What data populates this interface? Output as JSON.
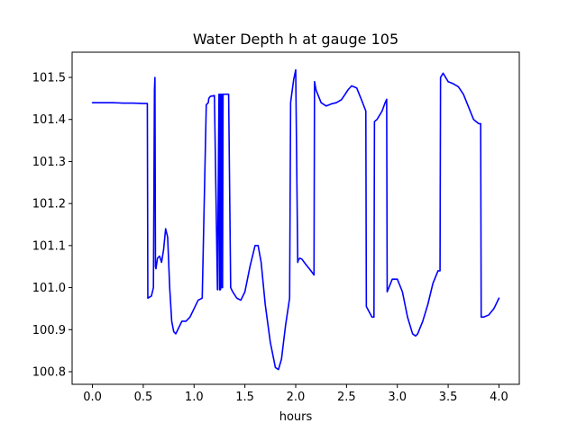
{
  "chart_data": {
    "type": "line",
    "title": "Water Depth h at gauge 105",
    "xlabel": "hours",
    "ylabel": "",
    "xlim": [
      -0.2,
      4.2
    ],
    "ylim": [
      100.77,
      101.56
    ],
    "xticks": [
      "0.0",
      "0.5",
      "1.0",
      "1.5",
      "2.0",
      "2.5",
      "3.0",
      "3.5",
      "4.0"
    ],
    "yticks": [
      "100.8",
      "100.9",
      "101.0",
      "101.1",
      "101.2",
      "101.3",
      "101.4",
      "101.5"
    ],
    "grid": false,
    "legend": "none",
    "series": [
      {
        "color": "#0000ff",
        "x": [
          0.0,
          0.2,
          0.3,
          0.4,
          0.5,
          0.54,
          0.545,
          0.58,
          0.6,
          0.61,
          0.615,
          0.62,
          0.625,
          0.64,
          0.66,
          0.68,
          0.7,
          0.72,
          0.74,
          0.76,
          0.78,
          0.8,
          0.82,
          0.84,
          0.88,
          0.92,
          0.96,
          1.0,
          1.04,
          1.08,
          1.12,
          1.14,
          1.145,
          1.16,
          1.2,
          1.23,
          1.245,
          1.25,
          1.255,
          1.26,
          1.265,
          1.27,
          1.275,
          1.28,
          1.285,
          1.3,
          1.34,
          1.36,
          1.38,
          1.42,
          1.46,
          1.5,
          1.55,
          1.6,
          1.63,
          1.66,
          1.7,
          1.75,
          1.8,
          1.83,
          1.86,
          1.9,
          1.94,
          1.95,
          1.955,
          1.98,
          2.0,
          2.02,
          2.025,
          2.04,
          2.06,
          2.1,
          2.15,
          2.18,
          2.185,
          2.2,
          2.25,
          2.3,
          2.35,
          2.4,
          2.45,
          2.5,
          2.52,
          2.55,
          2.6,
          2.65,
          2.69,
          2.695,
          2.75,
          2.77,
          2.775,
          2.8,
          2.85,
          2.88,
          2.895,
          2.9,
          2.95,
          3.0,
          3.05,
          3.1,
          3.15,
          3.18,
          3.2,
          3.25,
          3.3,
          3.35,
          3.4,
          3.42,
          3.425,
          3.45,
          3.5,
          3.55,
          3.6,
          3.65,
          3.7,
          3.75,
          3.8,
          3.82,
          3.825,
          3.85,
          3.9,
          3.95,
          4.0
        ],
        "y": [
          101.44,
          101.44,
          101.439,
          101.439,
          101.438,
          101.438,
          100.975,
          100.98,
          101.0,
          101.47,
          101.5,
          101.05,
          101.045,
          101.07,
          101.075,
          101.06,
          101.09,
          101.14,
          101.12,
          101.0,
          100.92,
          100.895,
          100.89,
          100.9,
          100.92,
          100.92,
          100.93,
          100.95,
          100.97,
          100.975,
          101.435,
          101.44,
          101.45,
          101.455,
          101.457,
          100.995,
          101.46,
          100.995,
          101.46,
          100.995,
          101.46,
          101.0,
          101.46,
          101.0,
          101.46,
          101.46,
          101.46,
          101.0,
          100.99,
          100.975,
          100.97,
          100.99,
          101.05,
          101.1,
          101.1,
          101.06,
          100.96,
          100.87,
          100.81,
          100.805,
          100.83,
          100.91,
          100.975,
          101.44,
          101.45,
          101.495,
          101.518,
          101.06,
          101.065,
          101.07,
          101.068,
          101.055,
          101.04,
          101.03,
          101.49,
          101.47,
          101.44,
          101.432,
          101.437,
          101.44,
          101.447,
          101.465,
          101.472,
          101.48,
          101.475,
          101.445,
          101.42,
          100.955,
          100.93,
          100.93,
          101.395,
          101.4,
          101.42,
          101.44,
          101.448,
          100.99,
          101.02,
          101.02,
          100.99,
          100.93,
          100.89,
          100.885,
          100.89,
          100.92,
          100.96,
          101.01,
          101.04,
          101.04,
          101.5,
          101.51,
          101.49,
          101.485,
          101.478,
          101.46,
          101.43,
          101.4,
          101.39,
          101.39,
          100.93,
          100.93,
          100.935,
          100.95,
          100.975
        ]
      }
    ]
  }
}
